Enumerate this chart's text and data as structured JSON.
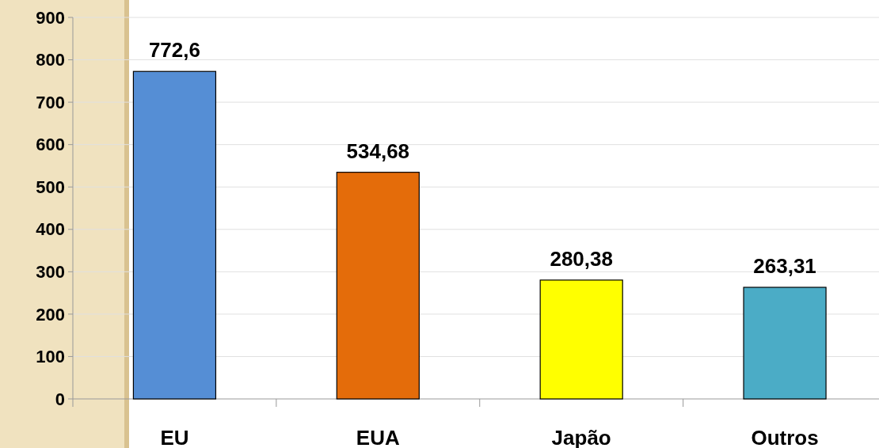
{
  "chart_data": {
    "type": "bar",
    "categories": [
      "EU",
      "EUA",
      "Japão",
      "Outros"
    ],
    "values": [
      772.6,
      534.68,
      280.38,
      263.31
    ],
    "colors": [
      "#558ed5",
      "#e46c0a",
      "#ffff00",
      "#4bacc6"
    ],
    "value_labels": [
      "772,6",
      "534,68",
      "280,38",
      "263,31"
    ],
    "ylim": [
      0,
      900
    ],
    "yticks": [
      0,
      100,
      200,
      300,
      400,
      500,
      600,
      700,
      800,
      900
    ],
    "grid": "y"
  }
}
